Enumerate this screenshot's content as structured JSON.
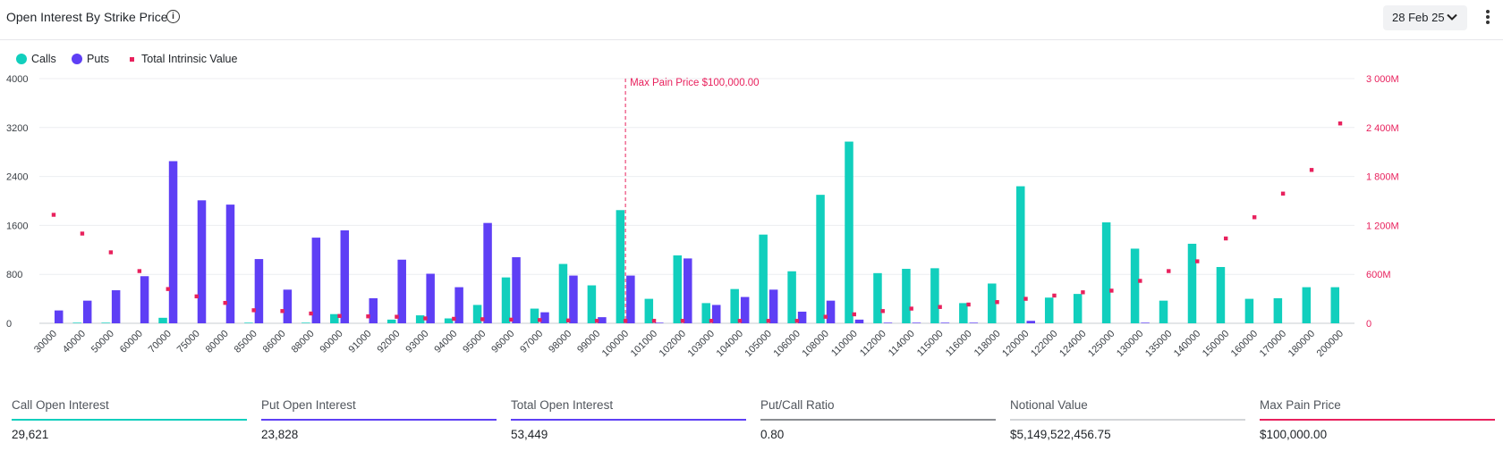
{
  "header": {
    "title": "Open Interest By Strike Price",
    "date": "28 Feb 25",
    "icons": {
      "info": "info-icon",
      "dropdown": "chevron-down-icon",
      "menu": "more-vertical-icon"
    }
  },
  "legend": [
    {
      "label": "Calls",
      "color": "#11cfbd",
      "shape": "circle"
    },
    {
      "label": "Puts",
      "color": "#5e3ff5",
      "shape": "circle"
    },
    {
      "label": "Total Intrinsic Value",
      "color": "#e8215d",
      "shape": "square"
    }
  ],
  "chart_data": {
    "type": "bar",
    "categories": [
      "30000",
      "40000",
      "50000",
      "60000",
      "70000",
      "75000",
      "80000",
      "85000",
      "86000",
      "88000",
      "90000",
      "91000",
      "92000",
      "93000",
      "94000",
      "95000",
      "96000",
      "97000",
      "98000",
      "99000",
      "100000",
      "101000",
      "102000",
      "103000",
      "104000",
      "105000",
      "106000",
      "108000",
      "110000",
      "112000",
      "114000",
      "115000",
      "116000",
      "118000",
      "120000",
      "122000",
      "124000",
      "125000",
      "130000",
      "135000",
      "140000",
      "150000",
      "160000",
      "170000",
      "180000",
      "200000"
    ],
    "series": [
      {
        "name": "Calls",
        "axis": "left",
        "type": "bar",
        "color": "#11cfbd",
        "values": [
          0,
          10,
          10,
          0,
          90,
          0,
          0,
          10,
          0,
          10,
          150,
          0,
          60,
          130,
          80,
          300,
          750,
          240,
          970,
          620,
          1850,
          400,
          1110,
          330,
          560,
          1450,
          850,
          2100,
          2970,
          820,
          890,
          900,
          330,
          650,
          2240,
          420,
          480,
          1650,
          1220,
          370,
          1300,
          920,
          400,
          410,
          590,
          590
        ]
      },
      {
        "name": "Puts",
        "axis": "left",
        "type": "bar",
        "color": "#5e3ff5",
        "values": [
          210,
          370,
          540,
          770,
          2650,
          2010,
          1940,
          1050,
          550,
          1400,
          1520,
          410,
          1040,
          810,
          590,
          1640,
          1080,
          180,
          780,
          100,
          780,
          10,
          1060,
          300,
          430,
          550,
          190,
          370,
          60,
          10,
          10,
          10,
          10,
          0,
          40,
          0,
          0,
          0,
          10,
          0,
          0,
          0,
          0,
          0,
          0,
          0
        ]
      },
      {
        "name": "Total Intrinsic Value",
        "axis": "right",
        "type": "scatter",
        "color": "#e8215d",
        "values": [
          1330,
          1100,
          870,
          640,
          420,
          330,
          250,
          160,
          150,
          120,
          90,
          85,
          80,
          60,
          55,
          50,
          45,
          40,
          35,
          30,
          30,
          30,
          30,
          30,
          30,
          30,
          30,
          80,
          110,
          150,
          180,
          200,
          230,
          260,
          300,
          340,
          380,
          400,
          520,
          640,
          760,
          1040,
          1300,
          1590,
          1880,
          2450
        ]
      }
    ],
    "y_left": {
      "ticks": [
        "0",
        "800",
        "1600",
        "2400",
        "3200",
        "4000"
      ],
      "ylim": [
        0,
        4000
      ]
    },
    "y_right": {
      "ticks": [
        "0",
        "600M",
        "1 200M",
        "1 800M",
        "2 400M",
        "3 000M"
      ],
      "ylim": [
        0,
        3000
      ]
    },
    "annotation": {
      "label": "Max Pain Price $100,000.00",
      "category": "100000",
      "color": "#e8215d"
    },
    "grid": true,
    "legend_position": "top-left"
  },
  "stats": [
    {
      "label": "Call Open Interest",
      "value": "29,621",
      "color": "#11cfbd"
    },
    {
      "label": "Put Open Interest",
      "value": "23,828",
      "color": "#5e3ff5"
    },
    {
      "label": "Total Open Interest",
      "value": "53,449",
      "color": "#5e3ff5"
    },
    {
      "label": "Put/Call Ratio",
      "value": "0.80",
      "color": "#8a8d92"
    },
    {
      "label": "Notional Value",
      "value": "$5,149,522,456.75",
      "color": "#d3d5d8"
    },
    {
      "label": "Max Pain Price",
      "value": "$100,000.00",
      "color": "#e8215d"
    }
  ]
}
